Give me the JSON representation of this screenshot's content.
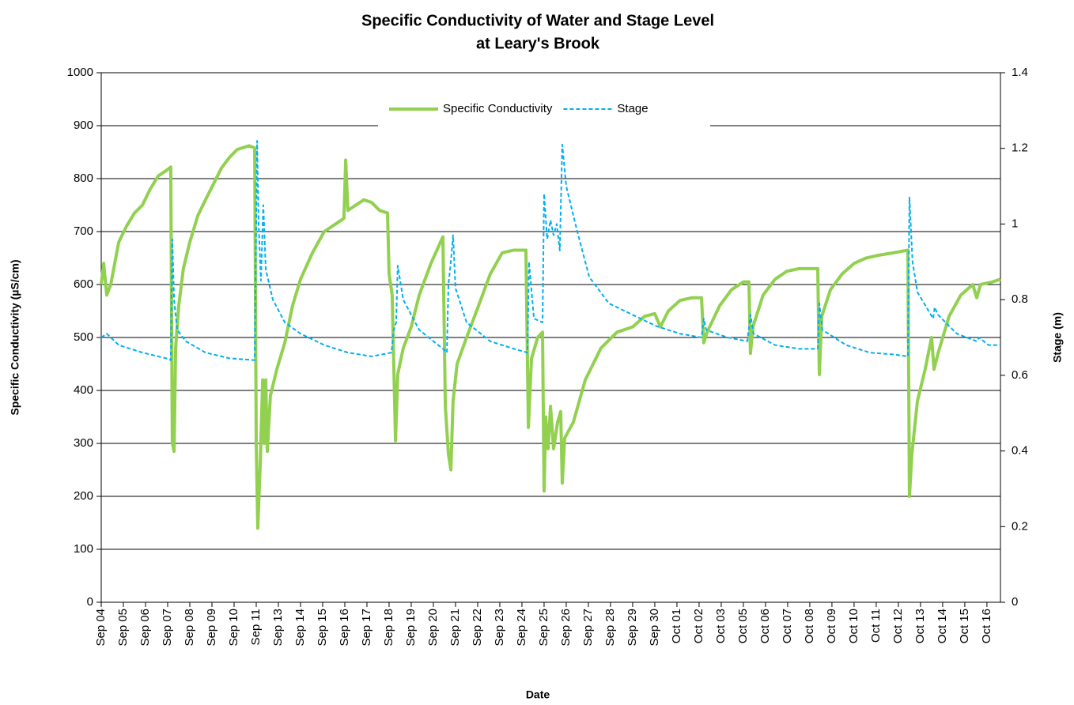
{
  "chart_data": {
    "type": "line",
    "title": [
      "Specific Conductivity of Water and Stage Level",
      "at Leary's Brook"
    ],
    "x_label": "Date",
    "y_label": "Specific Conductivity (µS/cm)",
    "y2_label": "Stage (m)",
    "xlim": [
      0,
      40.61
    ],
    "xticks": [
      {
        "value": 0,
        "label": "Sep 04"
      },
      {
        "value": 1,
        "label": "Sep 05"
      },
      {
        "value": 2,
        "label": "Sep 06"
      },
      {
        "value": 3,
        "label": "Sep 07"
      },
      {
        "value": 4,
        "label": "Sep 08"
      },
      {
        "value": 5,
        "label": "Sep 09"
      },
      {
        "value": 6,
        "label": "Sep 10"
      },
      {
        "value": 7,
        "label": "Sep 11"
      },
      {
        "value": 8,
        "label": "Sep 13"
      },
      {
        "value": 9,
        "label": "Sep 14"
      },
      {
        "value": 10,
        "label": "Sep 15"
      },
      {
        "value": 11,
        "label": "Sep 16"
      },
      {
        "value": 12,
        "label": "Sep 17"
      },
      {
        "value": 13,
        "label": "Sep 18"
      },
      {
        "value": 14,
        "label": "Sep 19"
      },
      {
        "value": 15,
        "label": "Sep 20"
      },
      {
        "value": 16,
        "label": "Sep 21"
      },
      {
        "value": 17,
        "label": "Sep 22"
      },
      {
        "value": 18,
        "label": "Sep 23"
      },
      {
        "value": 19,
        "label": "Sep 24"
      },
      {
        "value": 20,
        "label": "Sep 25"
      },
      {
        "value": 21,
        "label": "Sep 26"
      },
      {
        "value": 22,
        "label": "Sep 27"
      },
      {
        "value": 23,
        "label": "Sep 28"
      },
      {
        "value": 24,
        "label": "Sep 29"
      },
      {
        "value": 25,
        "label": "Sep 30"
      },
      {
        "value": 26,
        "label": "Oct 01"
      },
      {
        "value": 27,
        "label": "Oct 02"
      },
      {
        "value": 28,
        "label": "Oct 03"
      },
      {
        "value": 29,
        "label": "Oct 05"
      },
      {
        "value": 30,
        "label": "Oct 06"
      },
      {
        "value": 31,
        "label": "Oct 07"
      },
      {
        "value": 32,
        "label": "Oct 08"
      },
      {
        "value": 33,
        "label": "Oct 09"
      },
      {
        "value": 34,
        "label": "Oct 10"
      },
      {
        "value": 35,
        "label": "Oct 11"
      },
      {
        "value": 36,
        "label": "Oct 12"
      },
      {
        "value": 37,
        "label": "Oct 13"
      },
      {
        "value": 38,
        "label": "Oct 14"
      },
      {
        "value": 39,
        "label": "Oct 15"
      },
      {
        "value": 40,
        "label": "Oct 16"
      }
    ],
    "ylim": [
      0,
      1000
    ],
    "yticks": [
      0,
      100,
      200,
      300,
      400,
      500,
      600,
      700,
      800,
      900,
      1000
    ],
    "y2lim": [
      0,
      1.4
    ],
    "y2ticks": [
      0,
      0.2,
      0.4,
      0.6,
      0.8,
      1,
      1.2,
      1.4
    ],
    "grid": true,
    "legend": "top",
    "series": [
      {
        "name": "Specific Conductivity",
        "color": "#92d050",
        "dash": false,
        "x": [
          0,
          0.11,
          0.25,
          0.43,
          0.79,
          1.14,
          1.5,
          1.86,
          2.21,
          2.57,
          2.93,
          3.14,
          3.21,
          3.29,
          3.36,
          3.5,
          3.71,
          4,
          4.36,
          4.71,
          5.07,
          5.43,
          5.79,
          6.14,
          6.68,
          6.93,
          7,
          7.07,
          7.18,
          7.29,
          7.36,
          7.43,
          7.5,
          7.64,
          7.93,
          8.29,
          8.64,
          9,
          9.54,
          10.07,
          10.61,
          10.96,
          11.04,
          11.14,
          11.5,
          11.86,
          12.21,
          12.57,
          12.93,
          13,
          13.14,
          13.29,
          13.39,
          13.64,
          14,
          14.36,
          14.89,
          15.43,
          15.54,
          15.68,
          15.79,
          15.89,
          16.07,
          16.5,
          17.04,
          17.57,
          18.11,
          18.64,
          19.18,
          19.29,
          19.43,
          19.71,
          19.93,
          20,
          20.07,
          20.18,
          20.29,
          20.43,
          20.61,
          20.75,
          20.82,
          20.93,
          21.32,
          21.86,
          22.57,
          23.29,
          24,
          24.54,
          25,
          25.25,
          25.61,
          26.14,
          26.68,
          27.11,
          27.21,
          27.36,
          27.93,
          28.46,
          29,
          29.25,
          29.32,
          29.43,
          29.89,
          30.43,
          30.96,
          31.5,
          32.04,
          32.36,
          32.43,
          32.54,
          32.93,
          33.46,
          34,
          34.54,
          35.07,
          35.79,
          36.43,
          36.5,
          36.61,
          36.86,
          37.21,
          37.5,
          37.61,
          37.79,
          38.29,
          38.82,
          39.36,
          39.54,
          39.71,
          40.25,
          40.61
        ],
        "values": [
          600,
          640,
          580,
          600,
          680,
          710,
          735,
          750,
          780,
          805,
          815,
          822,
          300,
          285,
          480,
          560,
          630,
          680,
          730,
          760,
          790,
          820,
          840,
          855,
          862,
          858,
          300,
          140,
          260,
          420,
          300,
          420,
          285,
          390,
          440,
          490,
          560,
          610,
          660,
          700,
          715,
          725,
          835,
          740,
          750,
          760,
          755,
          740,
          735,
          620,
          580,
          305,
          430,
          480,
          520,
          580,
          640,
          690,
          370,
          280,
          250,
          380,
          450,
          500,
          560,
          620,
          660,
          665,
          665,
          330,
          460,
          500,
          510,
          210,
          350,
          290,
          370,
          290,
          340,
          360,
          225,
          310,
          340,
          420,
          480,
          510,
          520,
          540,
          545,
          520,
          550,
          570,
          575,
          575,
          490,
          510,
          560,
          590,
          605,
          605,
          470,
          520,
          580,
          610,
          625,
          630,
          630,
          630,
          430,
          540,
          590,
          620,
          640,
          650,
          655,
          660,
          665,
          200,
          280,
          380,
          440,
          500,
          440,
          470,
          540,
          580,
          600,
          575,
          600,
          605,
          610
        ]
      },
      {
        "name": "Stage",
        "color": "#00b0f0",
        "dash": true,
        "axis": "y2",
        "x": [
          0,
          0.25,
          0.79,
          1.86,
          2.93,
          3.14,
          3.21,
          3.29,
          3.43,
          3.82,
          4.71,
          5.79,
          6.93,
          7.04,
          7.11,
          7.21,
          7.32,
          7.43,
          7.75,
          8.29,
          9,
          10.07,
          11.14,
          12.21,
          13.11,
          13.21,
          13.32,
          13.39,
          13.64,
          14.36,
          15.43,
          15.61,
          15.68,
          15.79,
          15.89,
          16,
          16.5,
          17.57,
          18.64,
          19.25,
          19.32,
          19.54,
          19.93,
          20,
          20.14,
          20.29,
          20.43,
          20.57,
          20.71,
          20.82,
          21,
          21.5,
          22.04,
          22.93,
          24,
          25.07,
          26.14,
          27.11,
          27.21,
          27.32,
          28.29,
          29.18,
          29.32,
          29.46,
          30.43,
          31.5,
          32.36,
          32.43,
          32.57,
          33.64,
          34.71,
          35.79,
          36.43,
          36.5,
          36.64,
          36.86,
          37.57,
          37.64,
          37.79,
          38.64,
          39.54,
          39.64,
          40.07,
          40.61
        ],
        "values": [
          0.7,
          0.71,
          0.68,
          0.66,
          0.645,
          0.64,
          0.96,
          0.8,
          0.72,
          0.69,
          0.66,
          0.645,
          0.64,
          1.22,
          1,
          0.85,
          1.05,
          0.88,
          0.8,
          0.74,
          0.71,
          0.68,
          0.66,
          0.65,
          0.66,
          0.72,
          0.74,
          0.89,
          0.8,
          0.72,
          0.67,
          0.66,
          0.84,
          0.9,
          0.97,
          0.83,
          0.74,
          0.69,
          0.67,
          0.66,
          0.9,
          0.75,
          0.74,
          1.08,
          0.96,
          1.01,
          0.97,
          1,
          0.93,
          1.21,
          1.1,
          0.98,
          0.86,
          0.79,
          0.76,
          0.73,
          0.71,
          0.7,
          0.75,
          0.72,
          0.7,
          0.69,
          0.76,
          0.71,
          0.68,
          0.67,
          0.67,
          0.79,
          0.72,
          0.68,
          0.66,
          0.655,
          0.65,
          1.07,
          0.9,
          0.82,
          0.75,
          0.78,
          0.76,
          0.71,
          0.69,
          0.7,
          0.68,
          0.68
        ]
      }
    ]
  }
}
